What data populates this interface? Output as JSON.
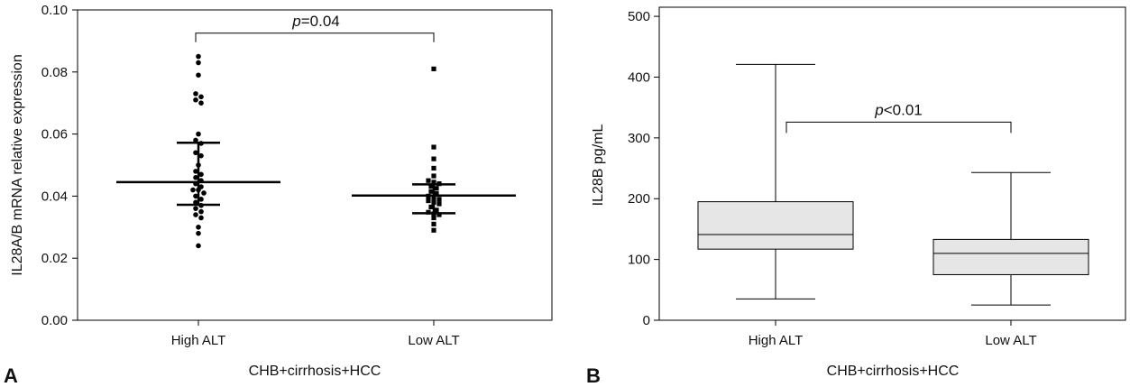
{
  "chart_data": [
    {
      "panel": "A",
      "type": "scatter",
      "xlabel": "CHB+cirrhosis+HCC",
      "ylabel": "IL28A/B mRNA relative expression",
      "categories": [
        "High ALT",
        "Low ALT"
      ],
      "ylim": [
        0,
        0.1
      ],
      "yticks": [
        0.0,
        0.02,
        0.04,
        0.06,
        0.08,
        0.1
      ],
      "ytick_labels": [
        "0.00",
        "0.02",
        "0.04",
        "0.06",
        "0.08",
        "0.10"
      ],
      "series": [
        {
          "category": "High ALT",
          "marker": "circle",
          "values": [
            0.085,
            0.083,
            0.079,
            0.073,
            0.072,
            0.071,
            0.07,
            0.06,
            0.058,
            0.057,
            0.054,
            0.053,
            0.05,
            0.048,
            0.047,
            0.046,
            0.045,
            0.044,
            0.043,
            0.042,
            0.042,
            0.041,
            0.04,
            0.039,
            0.038,
            0.037,
            0.036,
            0.035,
            0.034,
            0.033,
            0.03,
            0.028,
            0.024
          ],
          "median": 0.0445,
          "q1": 0.0372,
          "q3": 0.0572
        },
        {
          "category": "Low ALT",
          "marker": "square",
          "values": [
            0.081,
            0.0558,
            0.052,
            0.049,
            0.0465,
            0.045,
            0.0445,
            0.044,
            0.0432,
            0.0425,
            0.0415,
            0.0408,
            0.04,
            0.0395,
            0.039,
            0.0385,
            0.038,
            0.0375,
            0.0365,
            0.0355,
            0.0348,
            0.0343,
            0.034,
            0.033,
            0.031,
            0.029
          ],
          "median": 0.0402,
          "q1": 0.0345,
          "q3": 0.0438
        }
      ],
      "annotation": {
        "p_symbol": "p",
        "p_value": "=0.04",
        "between": [
          "High ALT",
          "Low ALT"
        ],
        "level": 0.0925
      }
    },
    {
      "panel": "B",
      "type": "box",
      "xlabel": "CHB+cirrhosis+HCC",
      "ylabel": "IL28B pg/mL",
      "categories": [
        "High ALT",
        "Low ALT"
      ],
      "ylim": [
        0,
        515
      ],
      "yticks": [
        0,
        100,
        200,
        300,
        400,
        500
      ],
      "ytick_labels": [
        "0",
        "100",
        "200",
        "300",
        "400",
        "500"
      ],
      "boxes": [
        {
          "category": "High ALT",
          "min": 35,
          "q1": 117,
          "median": 141,
          "q3": 195,
          "max": 421
        },
        {
          "category": "Low ALT",
          "min": 25,
          "q1": 75,
          "median": 110,
          "q3": 133,
          "max": 243
        }
      ],
      "box_fill": "#e6e6e6",
      "annotation": {
        "p_symbol": "p",
        "p_value": "<0.01",
        "between": [
          "High ALT",
          "Low ALT"
        ],
        "level": 326
      }
    }
  ]
}
